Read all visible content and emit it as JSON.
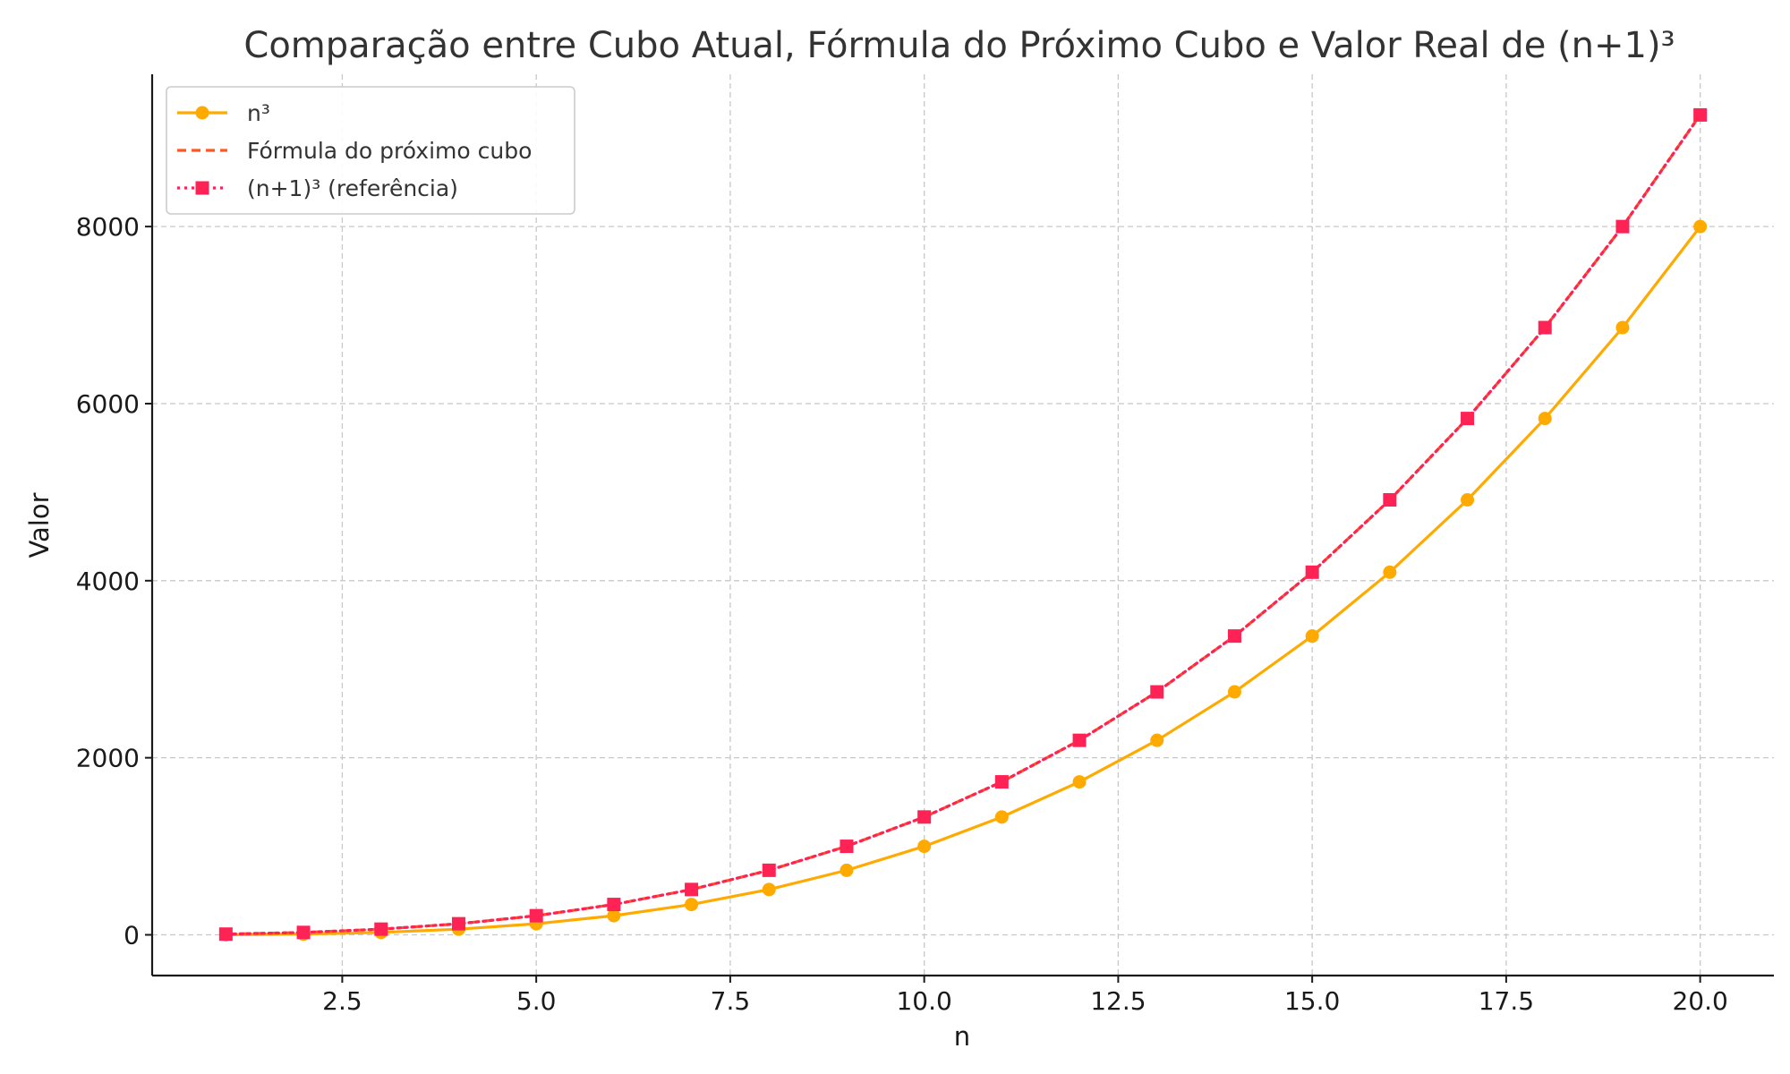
{
  "chart_data": {
    "type": "line",
    "title": "Comparação entre Cubo Atual, Fórmula do Próximo Cubo e Valor Real de (n+1)³",
    "xlabel": "n",
    "ylabel": "Valor",
    "xlim": [
      0.05,
      20.95
    ],
    "ylim": [
      -460,
      9720
    ],
    "xticks": [
      2.5,
      5.0,
      7.5,
      10.0,
      12.5,
      15.0,
      17.5,
      20.0
    ],
    "xtick_labels": [
      "2.5",
      "5.0",
      "7.5",
      "10.0",
      "12.5",
      "15.0",
      "17.5",
      "20.0"
    ],
    "yticks": [
      0,
      2000,
      4000,
      6000,
      8000
    ],
    "ytick_labels": [
      "0",
      "2000",
      "4000",
      "6000",
      "8000"
    ],
    "grid": true,
    "legend_position": "upper-left",
    "x": [
      1,
      2,
      3,
      4,
      5,
      6,
      7,
      8,
      9,
      10,
      11,
      12,
      13,
      14,
      15,
      16,
      17,
      18,
      19,
      20
    ],
    "series": [
      {
        "name": "n³",
        "color": "#ffaa00",
        "line_style": "solid",
        "marker": "circle",
        "values": [
          1,
          8,
          27,
          64,
          125,
          216,
          343,
          512,
          729,
          1000,
          1331,
          1728,
          2197,
          2744,
          3375,
          4096,
          4913,
          5832,
          6859,
          8000
        ]
      },
      {
        "name": "Fórmula do próximo cubo",
        "color": "#ff5722",
        "line_style": "dashed",
        "marker": "none",
        "values": [
          8,
          27,
          64,
          125,
          216,
          343,
          512,
          729,
          1000,
          1331,
          1728,
          2197,
          2744,
          3375,
          4096,
          4913,
          5832,
          6859,
          8000,
          9261
        ]
      },
      {
        "name": "(n+1)³ (referência)",
        "color": "#ff2255",
        "line_style": "dotted",
        "marker": "square",
        "values": [
          8,
          27,
          64,
          125,
          216,
          343,
          512,
          729,
          1000,
          1331,
          1728,
          2197,
          2744,
          3375,
          4096,
          4913,
          5832,
          6859,
          8000,
          9261
        ]
      }
    ]
  }
}
